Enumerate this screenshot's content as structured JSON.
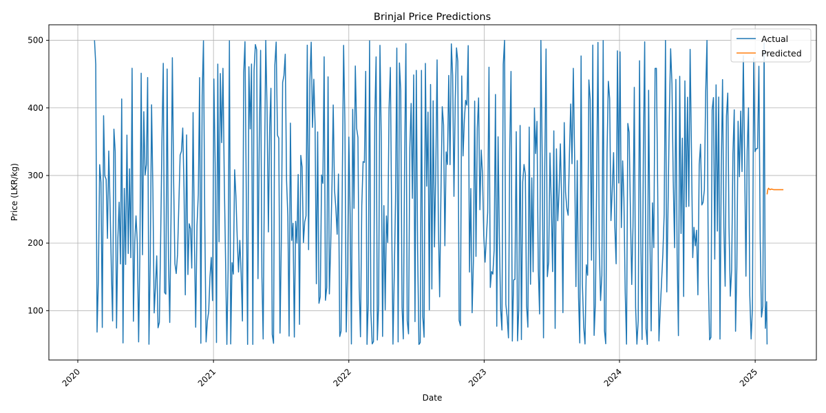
{
  "chart_data": {
    "type": "line",
    "title": "Brinjal Price Predictions",
    "xlabel": "Date",
    "ylabel": "Price (LKR/kg)",
    "x_range": [
      "2019-10-15",
      "2025-06-15"
    ],
    "ylim": [
      27,
      523
    ],
    "x_ticks": [
      "2020",
      "2021",
      "2022",
      "2023",
      "2024",
      "2025"
    ],
    "y_ticks": [
      100,
      200,
      300,
      400,
      500
    ],
    "grid": true,
    "legend_position": "top-right",
    "series": [
      {
        "name": "Actual",
        "color": "#1f77b4",
        "start": "2020-02-15",
        "end": "2025-02-02",
        "step_days": 7,
        "approx_min": 50,
        "approx_max": 500,
        "end_value": 50,
        "shape": "dense daily oscillation between ~50 and ~500"
      },
      {
        "name": "Predicted",
        "color": "#ff7f0e",
        "x": [
          "2025-02-02",
          "2025-02-04",
          "2025-02-06",
          "2025-02-08",
          "2025-02-10",
          "2025-02-14",
          "2025-02-20",
          "2025-02-26",
          "2025-03-05",
          "2025-03-11",
          "2025-03-18"
        ],
        "values": [
          272,
          279,
          281,
          280,
          279,
          280,
          279,
          279,
          279,
          279,
          279
        ]
      }
    ]
  }
}
